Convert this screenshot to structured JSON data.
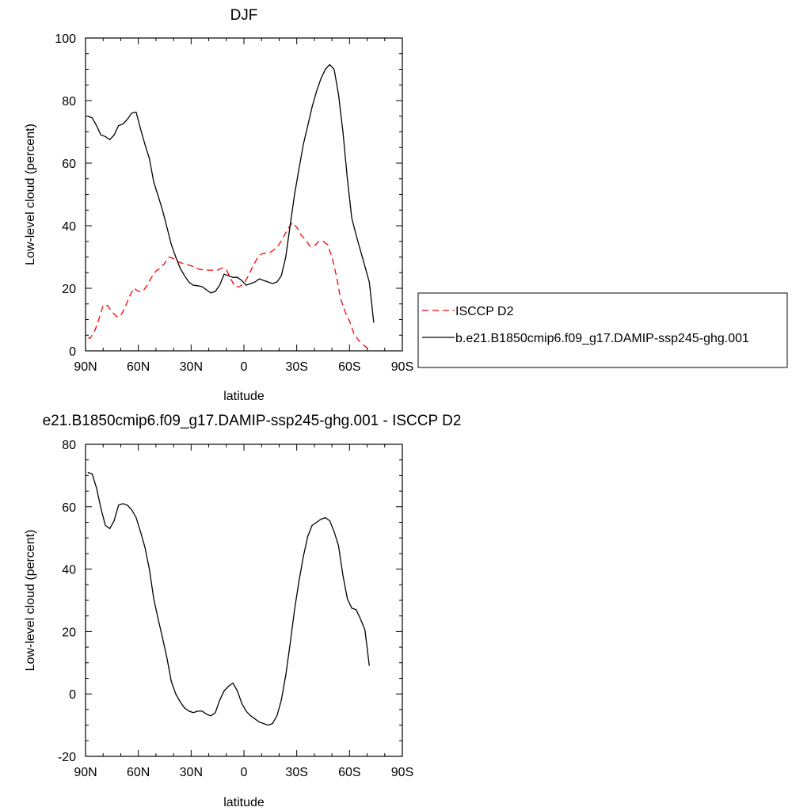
{
  "chart_data": [
    {
      "type": "line",
      "title": "DJF",
      "xlabel": "latitude",
      "ylabel": "Low-level cloud (percent)",
      "xlim": [
        -90,
        90
      ],
      "ylim": [
        0,
        100
      ],
      "xticks": [
        -90,
        -60,
        -30,
        0,
        30,
        60,
        90
      ],
      "xtick_labels": [
        "90N",
        "60N",
        "30N",
        "0",
        "30S",
        "60S",
        "90S"
      ],
      "yticks": [
        0,
        20,
        40,
        60,
        80,
        100
      ],
      "ytick_labels": [
        "0",
        "20",
        "40",
        "60",
        "80",
        "100"
      ],
      "grid": false,
      "legend_position": "right",
      "series": [
        {
          "name": "ISCCP D2",
          "color": "#ff0000",
          "dash": "dashed",
          "points": [
            [
              -88.75,
              4.2
            ],
            [
              -87.5,
              4.0
            ],
            [
              -85,
              6.0
            ],
            [
              -82.5,
              10.0
            ],
            [
              -80,
              14.5
            ],
            [
              -77.5,
              14.5
            ],
            [
              -75,
              12.5
            ],
            [
              -72.5,
              11.0
            ],
            [
              -70,
              11.2
            ],
            [
              -67.5,
              14.0
            ],
            [
              -65,
              17.5
            ],
            [
              -62.5,
              20.0
            ],
            [
              -60,
              19.0
            ],
            [
              -57.5,
              19.0
            ],
            [
              -55,
              21.0
            ],
            [
              -52.5,
              23.5
            ],
            [
              -50,
              25.5
            ],
            [
              -47.5,
              26.5
            ],
            [
              -45,
              28.0
            ],
            [
              -42.5,
              30.0
            ],
            [
              -40,
              29.5
            ],
            [
              -37.5,
              28.5
            ],
            [
              -35,
              28.0
            ],
            [
              -30,
              27.2
            ],
            [
              -25,
              26.0
            ],
            [
              -20,
              25.8
            ],
            [
              -15,
              25.8
            ],
            [
              -12.5,
              26.5
            ],
            [
              -10,
              26.0
            ],
            [
              -7.5,
              23.0
            ],
            [
              -5,
              20.5
            ],
            [
              -2.5,
              20.5
            ],
            [
              0,
              21.5
            ],
            [
              2.5,
              24.0
            ],
            [
              5,
              27.0
            ],
            [
              7.5,
              29.5
            ],
            [
              10,
              31.0
            ],
            [
              15,
              31.5
            ],
            [
              17.5,
              32.5
            ],
            [
              20,
              34.0
            ],
            [
              22.5,
              36.5
            ],
            [
              25,
              39.0
            ],
            [
              27.5,
              41.0
            ],
            [
              30,
              39.5
            ],
            [
              32.5,
              37.0
            ],
            [
              35,
              35.5
            ],
            [
              37.5,
              33.5
            ],
            [
              40,
              33.5
            ],
            [
              42.5,
              35.0
            ],
            [
              45,
              35.0
            ],
            [
              47.5,
              34.0
            ],
            [
              50,
              30.0
            ],
            [
              52.5,
              24.0
            ],
            [
              55,
              16.5
            ],
            [
              57.5,
              12.5
            ],
            [
              60,
              9.5
            ],
            [
              62.5,
              5.5
            ],
            [
              65,
              3.5
            ],
            [
              67.5,
              2.0
            ],
            [
              70,
              1.0
            ],
            [
              72.5,
              0.0
            ]
          ]
        },
        {
          "name": "b.e21.B1850cmip6.f09_g17.DAMIP-ssp245-ghg.001",
          "color": "#000000",
          "dash": "solid",
          "points": [
            [
              -88.75,
              75.0
            ],
            [
              -86.25,
              74.5
            ],
            [
              -83.75,
              72.0
            ],
            [
              -81.25,
              69.0
            ],
            [
              -78.75,
              68.5
            ],
            [
              -76.25,
              67.5
            ],
            [
              -73.75,
              69.0
            ],
            [
              -71.25,
              72.0
            ],
            [
              -68.75,
              72.5
            ],
            [
              -66.25,
              74.0
            ],
            [
              -63.75,
              76.0
            ],
            [
              -61.25,
              76.3
            ],
            [
              -58.75,
              71.0
            ],
            [
              -56.25,
              66.0
            ],
            [
              -53.75,
              61.5
            ],
            [
              -51.25,
              54.0
            ],
            [
              -48.75,
              49.5
            ],
            [
              -46.25,
              45.0
            ],
            [
              -43.75,
              39.5
            ],
            [
              -41.25,
              34.0
            ],
            [
              -38.75,
              30.0
            ],
            [
              -36.25,
              26.5
            ],
            [
              -33.75,
              24.0
            ],
            [
              -31.25,
              22.0
            ],
            [
              -28.75,
              21.0
            ],
            [
              -26.25,
              20.8
            ],
            [
              -23.75,
              20.5
            ],
            [
              -21.25,
              19.5
            ],
            [
              -18.75,
              18.5
            ],
            [
              -16.25,
              19.0
            ],
            [
              -13.75,
              21.0
            ],
            [
              -11.25,
              24.5
            ],
            [
              -8.75,
              24.0
            ],
            [
              -6.25,
              23.5
            ],
            [
              -3.75,
              23.5
            ],
            [
              -1.25,
              22.5
            ],
            [
              1.25,
              21.0
            ],
            [
              3.75,
              21.5
            ],
            [
              6.25,
              22.0
            ],
            [
              8.75,
              23.0
            ],
            [
              11.25,
              22.5
            ],
            [
              13.75,
              22.0
            ],
            [
              16.25,
              21.5
            ],
            [
              18.75,
              22.0
            ],
            [
              21.25,
              24.0
            ],
            [
              23.75,
              30.0
            ],
            [
              26.25,
              40.0
            ],
            [
              28.75,
              50.0
            ],
            [
              31.25,
              58.0
            ],
            [
              33.75,
              66.0
            ],
            [
              36.25,
              72.0
            ],
            [
              38.75,
              78.0
            ],
            [
              41.25,
              83.0
            ],
            [
              43.75,
              87.0
            ],
            [
              46.25,
              90.0
            ],
            [
              48.75,
              91.5
            ],
            [
              51.25,
              90.0
            ],
            [
              53.75,
              82.0
            ],
            [
              56.25,
              70.0
            ],
            [
              58.75,
              55.0
            ],
            [
              61.25,
              42.5
            ],
            [
              63.75,
              37.0
            ],
            [
              66.25,
              32.0
            ],
            [
              68.75,
              27.0
            ],
            [
              71.25,
              22.0
            ],
            [
              73.75,
              9.0
            ]
          ]
        }
      ]
    },
    {
      "type": "line",
      "title": "e21.B1850cmip6.f09_g17.DAMIP-ssp245-ghg.001 - ISCCP D2",
      "xlabel": "latitude",
      "ylabel": "Low-level cloud (percent)",
      "xlim": [
        -90,
        90
      ],
      "ylim": [
        -20,
        80
      ],
      "xticks": [
        -90,
        -60,
        -30,
        0,
        30,
        60,
        90
      ],
      "xtick_labels": [
        "90N",
        "60N",
        "30N",
        "0",
        "30S",
        "60S",
        "90S"
      ],
      "yticks": [
        -20,
        0,
        20,
        40,
        60,
        80
      ],
      "ytick_labels": [
        "-20",
        "0",
        "20",
        "40",
        "60",
        "80"
      ],
      "grid": false,
      "series": [
        {
          "color": "#000000",
          "dash": "solid",
          "points": [
            [
              -88.75,
              71.0
            ],
            [
              -86.25,
              70.5
            ],
            [
              -83.75,
              66.0
            ],
            [
              -81.25,
              59.5
            ],
            [
              -78.75,
              54.0
            ],
            [
              -76.25,
              53.0
            ],
            [
              -73.75,
              55.5
            ],
            [
              -71.25,
              60.5
            ],
            [
              -68.75,
              61.0
            ],
            [
              -66.25,
              60.5
            ],
            [
              -63.75,
              59.0
            ],
            [
              -61.25,
              56.5
            ],
            [
              -58.75,
              52.0
            ],
            [
              -56.25,
              47.0
            ],
            [
              -53.75,
              40.0
            ],
            [
              -51.25,
              30.5
            ],
            [
              -48.75,
              24.0
            ],
            [
              -46.25,
              18.0
            ],
            [
              -43.75,
              11.5
            ],
            [
              -41.25,
              4.0
            ],
            [
              -38.75,
              0.0
            ],
            [
              -36.25,
              -2.5
            ],
            [
              -33.75,
              -4.5
            ],
            [
              -31.25,
              -5.5
            ],
            [
              -28.75,
              -6.0
            ],
            [
              -26.25,
              -5.5
            ],
            [
              -23.75,
              -5.5
            ],
            [
              -21.25,
              -6.5
            ],
            [
              -18.75,
              -7.0
            ],
            [
              -16.25,
              -6.0
            ],
            [
              -13.75,
              -2.0
            ],
            [
              -11.25,
              1.0
            ],
            [
              -8.75,
              2.5
            ],
            [
              -6.25,
              3.5
            ],
            [
              -3.75,
              1.0
            ],
            [
              -1.25,
              -3.0
            ],
            [
              1.25,
              -5.5
            ],
            [
              3.75,
              -7.0
            ],
            [
              6.25,
              -8.0
            ],
            [
              8.75,
              -9.0
            ],
            [
              11.25,
              -9.5
            ],
            [
              13.75,
              -10.0
            ],
            [
              16.25,
              -9.5
            ],
            [
              18.75,
              -7.0
            ],
            [
              21.25,
              -2.0
            ],
            [
              23.75,
              6.0
            ],
            [
              26.25,
              16.0
            ],
            [
              28.75,
              27.0
            ],
            [
              31.25,
              36.0
            ],
            [
              33.75,
              44.0
            ],
            [
              36.25,
              50.5
            ],
            [
              38.75,
              54.0
            ],
            [
              41.25,
              55.0
            ],
            [
              43.75,
              56.0
            ],
            [
              46.25,
              56.5
            ],
            [
              48.75,
              55.5
            ],
            [
              51.25,
              52.0
            ],
            [
              53.75,
              47.5
            ],
            [
              56.25,
              38.0
            ],
            [
              58.75,
              30.5
            ],
            [
              61.25,
              27.5
            ],
            [
              63.75,
              27.0
            ],
            [
              66.25,
              24.0
            ],
            [
              68.75,
              20.5
            ],
            [
              71.25,
              9.0
            ]
          ]
        }
      ]
    }
  ]
}
